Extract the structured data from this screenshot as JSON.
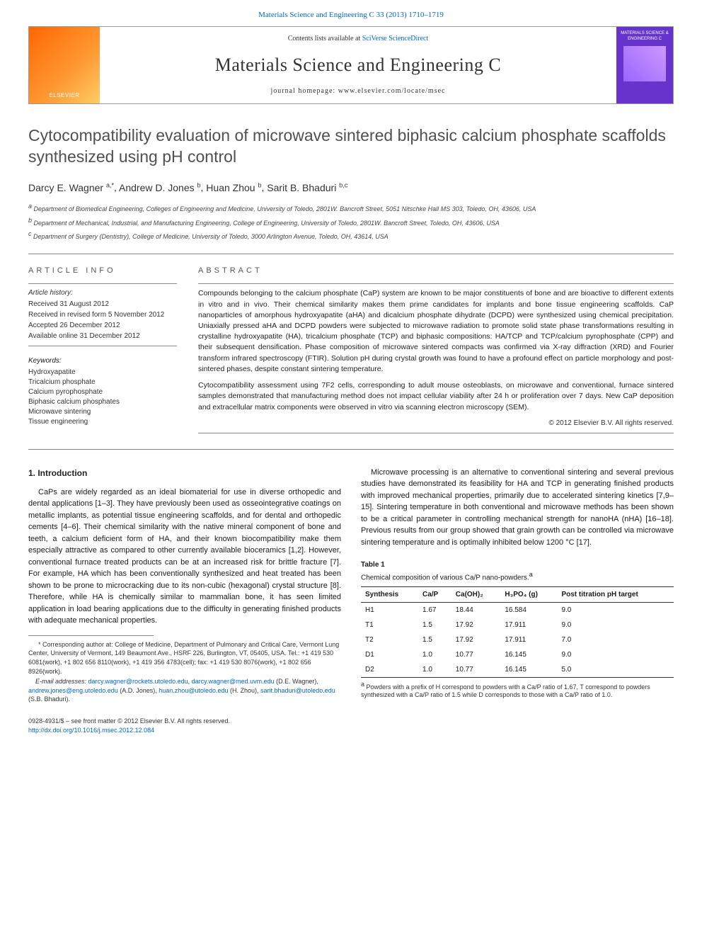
{
  "top_link": "Materials Science and Engineering C 33 (2013) 1710–1719",
  "header": {
    "publisher": "ELSEVIER",
    "contents_line_prefix": "Contents lists available at ",
    "contents_link": "SciVerse ScienceDirect",
    "journal": "Materials Science and Engineering C",
    "homepage_prefix": "journal homepage: ",
    "homepage": "www.elsevier.com/locate/msec",
    "cover_text": "MATERIALS SCIENCE & ENGINEERING C"
  },
  "title": "Cytocompatibility evaluation of microwave sintered biphasic calcium phosphate scaffolds synthesized using pH control",
  "authors": [
    {
      "name": "Darcy E. Wagner",
      "mark": "a,*"
    },
    {
      "name": "Andrew D. Jones",
      "mark": "b"
    },
    {
      "name": "Huan Zhou",
      "mark": "b"
    },
    {
      "name": "Sarit B. Bhaduri",
      "mark": "b,c"
    }
  ],
  "affiliations": [
    {
      "mark": "a",
      "text": "Department of Biomedical Engineering, Colleges of Engineering and Medicine, University of Toledo, 2801W. Bancroft Street, 5051 Nitschke Hall MS 303, Toledo, OH, 43606, USA"
    },
    {
      "mark": "b",
      "text": "Department of Mechanical, Industrial, and Manufacturing Engineering, College of Engineering, University of Toledo, 2801W. Bancroft Street, Toledo, OH, 43606, USA"
    },
    {
      "mark": "c",
      "text": "Department of Surgery (Dentistry), College of Medicine, University of Toledo, 3000 Arlington Avenue, Toledo, OH, 43614, USA"
    }
  ],
  "article_info": {
    "heading": "ARTICLE INFO",
    "history_label": "Article history:",
    "history": [
      "Received 31 August 2012",
      "Received in revised form 5 November 2012",
      "Accepted 26 December 2012",
      "Available online 31 December 2012"
    ],
    "keywords_label": "Keywords:",
    "keywords": [
      "Hydroxyapatite",
      "Tricalcium phosphate",
      "Calcium pyrophosphate",
      "Biphasic calcium phosphates",
      "Microwave sintering",
      "Tissue engineering"
    ]
  },
  "abstract": {
    "heading": "ABSTRACT",
    "paragraphs": [
      "Compounds belonging to the calcium phosphate (CaP) system are known to be major constituents of bone and are bioactive to different extents in vitro and in vivo. Their chemical similarity makes them prime candidates for implants and bone tissue engineering scaffolds. CaP nanoparticles of amorphous hydroxyapatite (aHA) and dicalcium phosphate dihydrate (DCPD) were synthesized using chemical precipitation. Uniaxially pressed aHA and DCPD powders were subjected to microwave radiation to promote solid state phase transformations resulting in crystalline hydroxyapatite (HA), tricalcium phosphate (TCP) and biphasic compositions: HA/TCP and TCP/calcium pyrophosphate (CPP) and their subsequent densification. Phase composition of microwave sintered compacts was confirmed via X-ray diffraction (XRD) and Fourier transform infrared spectroscopy (FTIR). Solution pH during crystal growth was found to have a profound effect on particle morphology and post-sintered phases, despite constant sintering temperature.",
      "Cytocompatibility assessment using 7F2 cells, corresponding to adult mouse osteoblasts, on microwave and conventional, furnace sintered samples demonstrated that manufacturing method does not impact cellular viability after 24 h or proliferation over 7 days. New CaP deposition and extracellular matrix components were observed in vitro via scanning electron microscopy (SEM)."
    ],
    "copyright": "© 2012 Elsevier B.V. All rights reserved."
  },
  "body": {
    "intro_heading": "1. Introduction",
    "col1_paragraphs": [
      "CaPs are widely regarded as an ideal biomaterial for use in diverse orthopedic and dental applications [1–3]. They have previously been used as osseointegrative coatings on metallic implants, as potential tissue engineering scaffolds, and for dental and orthopedic cements [4–6]. Their chemical similarity with the native mineral component of bone and teeth, a calcium deficient form of HA, and their known biocompatibility make them especially attractive as compared to other currently available bioceramics [1,2]. However, conventional furnace treated products can be at an increased risk for brittle fracture [7]. For example, HA which has been conventionally synthesized and heat treated has been shown to be prone to microcracking due to its non-cubic (hexagonal) crystal structure [8]. Therefore, while HA is chemically similar to mammalian bone, it has seen limited application in load bearing applications due to the difficulty in generating finished products with adequate mechanical properties."
    ],
    "col2_paragraphs": [
      "Microwave processing is an alternative to conventional sintering and several previous studies have demonstrated its feasibility for HA and TCP in generating finished products with improved mechanical properties, primarily due to accelerated sintering kinetics [7,9–15]. Sintering temperature in both conventional and microwave methods has been shown to be a critical parameter in controlling mechanical strength for nanoHA (nHA) [16–18]. Previous results from our group showed that grain growth can be controlled via microwave sintering temperature and is optimally inhibited below 1200 °C [17]."
    ]
  },
  "table1": {
    "label": "Table 1",
    "caption": "Chemical composition of various Ca/P nano-powders.",
    "caption_sup": "a",
    "columns": [
      "Synthesis",
      "Ca/P",
      "Ca(OH)₂",
      "H₃PO₄ (g)",
      "Post titration pH target"
    ],
    "rows": [
      [
        "H1",
        "1.67",
        "18.44",
        "16.584",
        "9.0"
      ],
      [
        "T1",
        "1.5",
        "17.92",
        "17.911",
        "9.0"
      ],
      [
        "T2",
        "1.5",
        "17.92",
        "17.911",
        "7.0"
      ],
      [
        "D1",
        "1.0",
        "10.77",
        "16.145",
        "9.0"
      ],
      [
        "D2",
        "1.0",
        "10.77",
        "16.145",
        "5.0"
      ]
    ],
    "note_mark": "a",
    "note": "Powders with a prefix of H correspond to powders with a Ca/P ratio of 1.67, T correspond to powders synthesized with a Ca/P ratio of 1.5 while D corresponds to those with a Ca/P ratio of 1.0."
  },
  "footnotes": {
    "corresponding": "* Corresponding author at: College of Medicine, Department of Pulmonary and Critical Care, Vermont Lung Center, University of Vermont, 149 Beaumont Ave., HSRF 226, Burlington, VT, 05405, USA. Tel.: +1 419 530 6081(work), +1 802 656 8110(work), +1 419 356 4783(cell); fax: +1 419 530 8076(work), +1 802 656 8926(work).",
    "emails_label": "E-mail addresses:",
    "emails": [
      {
        "addr": "darcy.wagner@rockets.utoledo.edu",
        "who": "(D.E. Wagner)"
      },
      {
        "addr": "darcy.wagner@med.uvm.edu",
        "who": "(D.E. Wagner)"
      },
      {
        "addr": "andrew.jones@eng.utoledo.edu",
        "who": "(A.D. Jones)"
      },
      {
        "addr": "huan.zhou@utoledo.edu",
        "who": "(H. Zhou)"
      },
      {
        "addr": "sarit.bhaduri@utoledo.edu",
        "who": "(S.B. Bhaduri)"
      }
    ]
  },
  "bottom": {
    "issn_line": "0928-4931/$ – see front matter © 2012 Elsevier B.V. All rights reserved.",
    "doi": "http://dx.doi.org/10.1016/j.msec.2012.12.084"
  },
  "colors": {
    "link": "#0066cc",
    "elsevier_orange": "#ff6600",
    "cover_purple": "#6633cc",
    "rule": "#888888",
    "text": "#1a1a1a",
    "title_gray": "#505050"
  }
}
